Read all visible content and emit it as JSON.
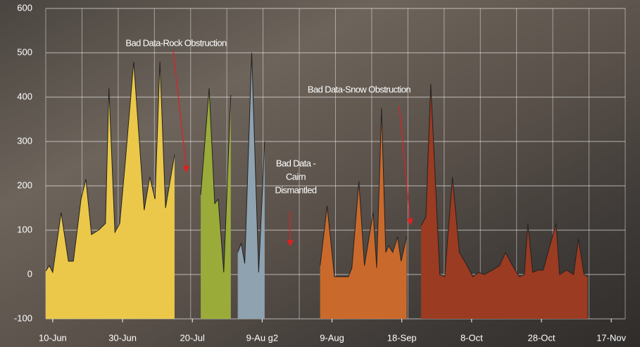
{
  "chart_data": {
    "type": "area",
    "xlim": [
      0,
      166
    ],
    "ylim": [
      -100,
      600
    ],
    "yticks": [
      -100,
      0,
      100,
      200,
      300,
      400,
      500,
      600
    ],
    "xticks": [
      {
        "value": 2,
        "label": "10-Jun"
      },
      {
        "value": 22,
        "label": "30-Jun"
      },
      {
        "value": 42,
        "label": "20-Jul"
      },
      {
        "value": 62,
        "label": "9-Au g2"
      },
      {
        "value": 82,
        "label": "9-Aug"
      },
      {
        "value": 102,
        "label": "18-Sep"
      },
      {
        "value": 122,
        "label": "8-Oct"
      },
      {
        "value": 142,
        "label": "28-Oct"
      },
      {
        "value": 162,
        "label": "17-Nov"
      }
    ],
    "grid": true,
    "series": [
      {
        "color": "#ebc84a",
        "x": [
          0,
          1,
          2,
          4.4,
          6.5,
          7.9,
          10.1,
          11.5,
          13.1,
          15.1,
          17.1,
          18.1,
          19.8,
          21.2,
          22.8,
          25.2,
          28.2,
          29.8,
          31.3,
          32.7,
          34.3,
          36.9
        ],
        "values": [
          8,
          20,
          5,
          140,
          30,
          30,
          170,
          215,
          90,
          100,
          115,
          420,
          95,
          115,
          255,
          480,
          145,
          220,
          170,
          480,
          150,
          270
        ]
      },
      {
        "color": "#9aab3a",
        "x": [
          44.4,
          46.8,
          48.4,
          49.4,
          51,
          53
        ],
        "values": [
          180,
          420,
          160,
          170,
          5,
          405
        ]
      },
      {
        "color": "#8ea2b0",
        "x": [
          55,
          56,
          57,
          59,
          61,
          62.7
        ],
        "values": [
          50,
          70,
          25,
          500,
          5,
          300
        ]
      },
      {
        "color": "#c96a2c",
        "x": [
          78.6,
          80.6,
          82.7,
          86.7,
          87.7,
          89.7,
          91.3,
          93.8,
          94.8,
          96.2,
          97.4,
          98.2,
          99.4,
          100.8,
          101.8,
          103.4
        ],
        "values": [
          20,
          155,
          -5,
          -5,
          15,
          210,
          20,
          140,
          15,
          375,
          50,
          65,
          50,
          85,
          30,
          85
        ]
      },
      {
        "color": "#9b3b22",
        "x": [
          107.5,
          108.9,
          110.3,
          112.9,
          114.3,
          116.5,
          118.5,
          120,
          122.4,
          124,
          125.6,
          128,
          130,
          131.7,
          133.7,
          135.7,
          137.1,
          138.1,
          139.5,
          141.1,
          142.5,
          146.2,
          147.2,
          149.2,
          151.2,
          152.6,
          154.2,
          155.2
        ],
        "values": [
          110,
          130,
          430,
          0,
          -5,
          220,
          50,
          30,
          -5,
          5,
          0,
          10,
          20,
          50,
          20,
          -5,
          0,
          115,
          5,
          10,
          10,
          115,
          0,
          10,
          0,
          80,
          0,
          -5
        ]
      }
    ],
    "annotations": [
      {
        "lines": [
          "Bad Data-Rock Obstruction"
        ]
      },
      {
        "lines": [
          "Bad Data -",
          "Cairn",
          "Dismantled"
        ]
      },
      {
        "lines": [
          "Bad Data-Snow Obstruction"
        ]
      }
    ]
  }
}
